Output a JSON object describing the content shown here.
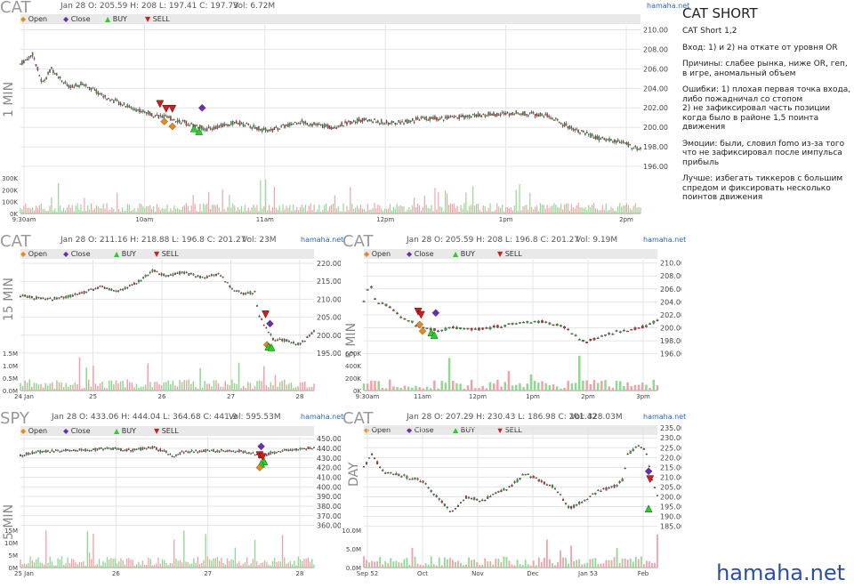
{
  "legend": {
    "open": "Open",
    "close": "Close",
    "buy": "BUY",
    "sell": "SELL"
  },
  "brand": "hamaha.net",
  "footer_brand": "hamaha.net",
  "notes": {
    "title": "CAT SHORT",
    "lines": [
      "CAT Short 1,2",
      "Вход: 1) и 2) на откате от уровня OR",
      "Причины: слабее рынка, ниже OR, геп, в игре, аномальный объем",
      "Ошибки: 1) плохая первая точка входа, либо пожадничал со стопом\n2) не зафиксировал часть позиции когда было в районе 1,5 поинта движения",
      "Эмоции: были, словил fomo из-за того что не зафиксировал после импульса прибыль",
      "Лучше: избегать тиккеров с большим спредом и фиксировать несколько поинтов движения"
    ]
  },
  "colors": {
    "up": "#2fa52f",
    "down": "#d62f2f",
    "buy": "#2ecc2e",
    "sell": "#cc1f1f",
    "open": "#e88a1a",
    "close": "#6a2cb8",
    "vol_up": "#8fd88f",
    "vol_down": "#f2a0a8",
    "grid": "#e4e4e4",
    "legend_bg": "#e9e9e9",
    "brand": "#2b66b8"
  },
  "chart_data": [
    {
      "type": "candlestick",
      "symbol": "CAT",
      "timeframe": "1 MIN",
      "header": "Jan 28 O: 205.59 H: 208 L: 197.41 C: 197.73",
      "volume_label": "Vol: 6.72M",
      "y_ticks": [
        "210.00",
        "208.00",
        "206.00",
        "204.00",
        "202.00",
        "200.00",
        "198.00",
        "196.00"
      ],
      "vol_ticks": [
        "300K",
        "200K",
        "100K",
        "0K"
      ],
      "x_ticks": [
        "9:30am",
        "10am",
        "11am",
        "12pm",
        "1pm",
        "2pm"
      ],
      "ylim": [
        195,
        210.5
      ],
      "price_path": [
        [
          0,
          206.5
        ],
        [
          0.02,
          207.5
        ],
        [
          0.035,
          204.5
        ],
        [
          0.05,
          206
        ],
        [
          0.08,
          204
        ],
        [
          0.1,
          204.5
        ],
        [
          0.14,
          203
        ],
        [
          0.18,
          202
        ],
        [
          0.22,
          201.2
        ],
        [
          0.25,
          200.8
        ],
        [
          0.3,
          199.8
        ],
        [
          0.35,
          200.5
        ],
        [
          0.4,
          199.6
        ],
        [
          0.45,
          200.6
        ],
        [
          0.5,
          200
        ],
        [
          0.55,
          200.8
        ],
        [
          0.6,
          200.4
        ],
        [
          0.65,
          200.9
        ],
        [
          0.7,
          201
        ],
        [
          0.75,
          201.3
        ],
        [
          0.8,
          201.5
        ],
        [
          0.85,
          201.2
        ],
        [
          0.88,
          200.2
        ],
        [
          0.93,
          198.9
        ],
        [
          0.97,
          198.5
        ],
        [
          1.0,
          197.7
        ]
      ],
      "markers": [
        {
          "kind": "sell",
          "x": 0.225,
          "y": 202.4
        },
        {
          "kind": "sell",
          "x": 0.235,
          "y": 201.9
        },
        {
          "kind": "sell",
          "x": 0.245,
          "y": 201.9
        },
        {
          "kind": "open",
          "x": 0.232,
          "y": 200.6
        },
        {
          "kind": "open",
          "x": 0.245,
          "y": 200.1
        },
        {
          "kind": "buy",
          "x": 0.28,
          "y": 199.9
        },
        {
          "kind": "buy",
          "x": 0.288,
          "y": 199.6
        },
        {
          "kind": "close",
          "x": 0.293,
          "y": 202
        }
      ]
    },
    {
      "type": "candlestick",
      "symbol": "CAT",
      "timeframe": "15 MIN",
      "header": "Jan 28 O: 211.16 H: 218.88 L: 196.8 C: 201.27",
      "volume_label": "Vol: 23M",
      "y_ticks": [
        "220.00",
        "215.00",
        "210.00",
        "205.00",
        "200.00",
        "195.00"
      ],
      "vol_ticks": [
        "1.5M",
        "1.0M",
        "0.5M",
        "0.0M"
      ],
      "x_ticks": [
        "24 Jan",
        "25",
        "26",
        "27",
        "28"
      ],
      "ylim": [
        193,
        221
      ],
      "price_path": [
        [
          0,
          211
        ],
        [
          0.08,
          210
        ],
        [
          0.15,
          210.5
        ],
        [
          0.22,
          212
        ],
        [
          0.28,
          213.5
        ],
        [
          0.33,
          212
        ],
        [
          0.38,
          214
        ],
        [
          0.42,
          216
        ],
        [
          0.45,
          218
        ],
        [
          0.5,
          216.5
        ],
        [
          0.55,
          217.5
        ],
        [
          0.62,
          216
        ],
        [
          0.68,
          217
        ],
        [
          0.72,
          213
        ],
        [
          0.76,
          211.5
        ],
        [
          0.8,
          212
        ],
        [
          0.81,
          206
        ],
        [
          0.83,
          203
        ],
        [
          0.86,
          199
        ],
        [
          0.9,
          198.5
        ],
        [
          0.95,
          197.5
        ],
        [
          1.0,
          201
        ]
      ],
      "markers": [
        {
          "kind": "sell",
          "x": 0.835,
          "y": 205.8
        },
        {
          "kind": "open",
          "x": 0.84,
          "y": 197.3
        },
        {
          "kind": "buy",
          "x": 0.845,
          "y": 196.8
        },
        {
          "kind": "close",
          "x": 0.85,
          "y": 203.2
        },
        {
          "kind": "buy",
          "x": 0.855,
          "y": 196.6
        }
      ]
    },
    {
      "type": "candlestick",
      "symbol": "CAT",
      "timeframe": "5 MIN",
      "header": "Jan 28 O: 205.59 H: 208 L: 196.8 C: 201.27",
      "volume_label": "Vol: 9.19M",
      "y_ticks": [
        "210.00",
        "208.00",
        "206.00",
        "204.00",
        "202.00",
        "200.00",
        "198.00",
        "196.00"
      ],
      "vol_ticks": [
        "600K",
        "400K",
        "200K",
        "0K"
      ],
      "x_ticks": [
        "9:30am",
        "11am",
        "12pm",
        "1pm",
        "2pm",
        "3pm"
      ],
      "ylim": [
        195,
        210.5
      ],
      "price_path": [
        [
          0,
          204
        ],
        [
          0.02,
          207
        ],
        [
          0.04,
          204
        ],
        [
          0.08,
          203.5
        ],
        [
          0.12,
          202
        ],
        [
          0.15,
          201.2
        ],
        [
          0.2,
          200
        ],
        [
          0.25,
          199.6
        ],
        [
          0.3,
          200
        ],
        [
          0.4,
          199.8
        ],
        [
          0.5,
          200.5
        ],
        [
          0.6,
          201
        ],
        [
          0.68,
          200.3
        ],
        [
          0.73,
          198.4
        ],
        [
          0.76,
          197.8
        ],
        [
          0.8,
          198.6
        ],
        [
          0.86,
          199.4
        ],
        [
          0.92,
          199.8
        ],
        [
          0.97,
          200.4
        ],
        [
          1.0,
          201.3
        ]
      ],
      "markers": [
        {
          "kind": "sell",
          "x": 0.185,
          "y": 202.5
        },
        {
          "kind": "sell",
          "x": 0.195,
          "y": 202
        },
        {
          "kind": "open",
          "x": 0.19,
          "y": 200.5
        },
        {
          "kind": "open",
          "x": 0.2,
          "y": 199.5
        },
        {
          "kind": "buy",
          "x": 0.23,
          "y": 199.3
        },
        {
          "kind": "buy",
          "x": 0.24,
          "y": 198.9
        },
        {
          "kind": "close",
          "x": 0.245,
          "y": 202.3
        }
      ]
    },
    {
      "type": "candlestick",
      "symbol": "SPY",
      "timeframe": "5 MIN",
      "header": "Jan 28 O: 433.06 H: 444.04 L: 364.68 C: 441.9",
      "volume_label": "Vol: 595.53M",
      "y_ticks": [
        "450.00",
        "440.00",
        "430.00",
        "420.00",
        "410.00",
        "400.00",
        "390.00",
        "380.00",
        "370.00",
        "360.00"
      ],
      "vol_ticks": [
        "15M",
        "10M",
        "5M",
        "0M"
      ],
      "x_ticks": [
        "25 Jan",
        "26",
        "27",
        "28"
      ],
      "ylim": [
        355,
        452
      ],
      "price_path": [
        [
          0,
          432
        ],
        [
          0.05,
          436
        ],
        [
          0.1,
          437
        ],
        [
          0.2,
          438
        ],
        [
          0.3,
          440
        ],
        [
          0.38,
          438
        ],
        [
          0.45,
          441
        ],
        [
          0.5,
          436
        ],
        [
          0.52,
          431
        ],
        [
          0.55,
          436
        ],
        [
          0.65,
          438
        ],
        [
          0.75,
          437
        ],
        [
          0.8,
          434
        ],
        [
          0.82,
          430
        ],
        [
          0.85,
          435
        ],
        [
          0.9,
          438
        ],
        [
          0.95,
          439
        ],
        [
          1.0,
          441
        ]
      ],
      "markers": [
        {
          "kind": "close",
          "x": 0.82,
          "y": 442
        },
        {
          "kind": "sell",
          "x": 0.815,
          "y": 433
        },
        {
          "kind": "sell",
          "x": 0.825,
          "y": 431
        },
        {
          "kind": "buy",
          "x": 0.83,
          "y": 426.5
        },
        {
          "kind": "buy",
          "x": 0.82,
          "y": 424
        },
        {
          "kind": "open",
          "x": 0.815,
          "y": 420
        }
      ]
    },
    {
      "type": "candlestick",
      "symbol": "CAT",
      "timeframe": "DAY",
      "header": "Jan 28 O: 207.29 H: 230.43 L: 186.98 C: 201.42",
      "volume_label": "Vol: 328.03M",
      "y_ticks": [
        "235.00",
        "230.00",
        "225.00",
        "220.00",
        "215.00",
        "210.00",
        "205.00",
        "200.00",
        "195.00",
        "190.00",
        "185.00"
      ],
      "vol_ticks": [
        "10.0M",
        "5.0M",
        "0.0M"
      ],
      "x_ticks": [
        "Sep 52",
        "Oct",
        "Nov",
        "Dec",
        "Jan 53",
        "Feb"
      ],
      "ylim": [
        183,
        236
      ],
      "price_path": [
        [
          0,
          215
        ],
        [
          0.03,
          222
        ],
        [
          0.06,
          213
        ],
        [
          0.1,
          212
        ],
        [
          0.15,
          210
        ],
        [
          0.2,
          208
        ],
        [
          0.25,
          200
        ],
        [
          0.3,
          192
        ],
        [
          0.35,
          200
        ],
        [
          0.4,
          198
        ],
        [
          0.45,
          202
        ],
        [
          0.5,
          205
        ],
        [
          0.55,
          212
        ],
        [
          0.6,
          208
        ],
        [
          0.65,
          205
        ],
        [
          0.7,
          194
        ],
        [
          0.75,
          198
        ],
        [
          0.8,
          203
        ],
        [
          0.85,
          205
        ],
        [
          0.88,
          208
        ],
        [
          0.9,
          222
        ],
        [
          0.94,
          226
        ],
        [
          0.96,
          224
        ],
        [
          0.98,
          210
        ],
        [
          1.0,
          201
        ]
      ],
      "markers": [
        {
          "kind": "close",
          "x": 0.97,
          "y": 213
        },
        {
          "kind": "sell",
          "x": 0.975,
          "y": 209
        },
        {
          "kind": "buy",
          "x": 0.97,
          "y": 194
        }
      ]
    }
  ]
}
